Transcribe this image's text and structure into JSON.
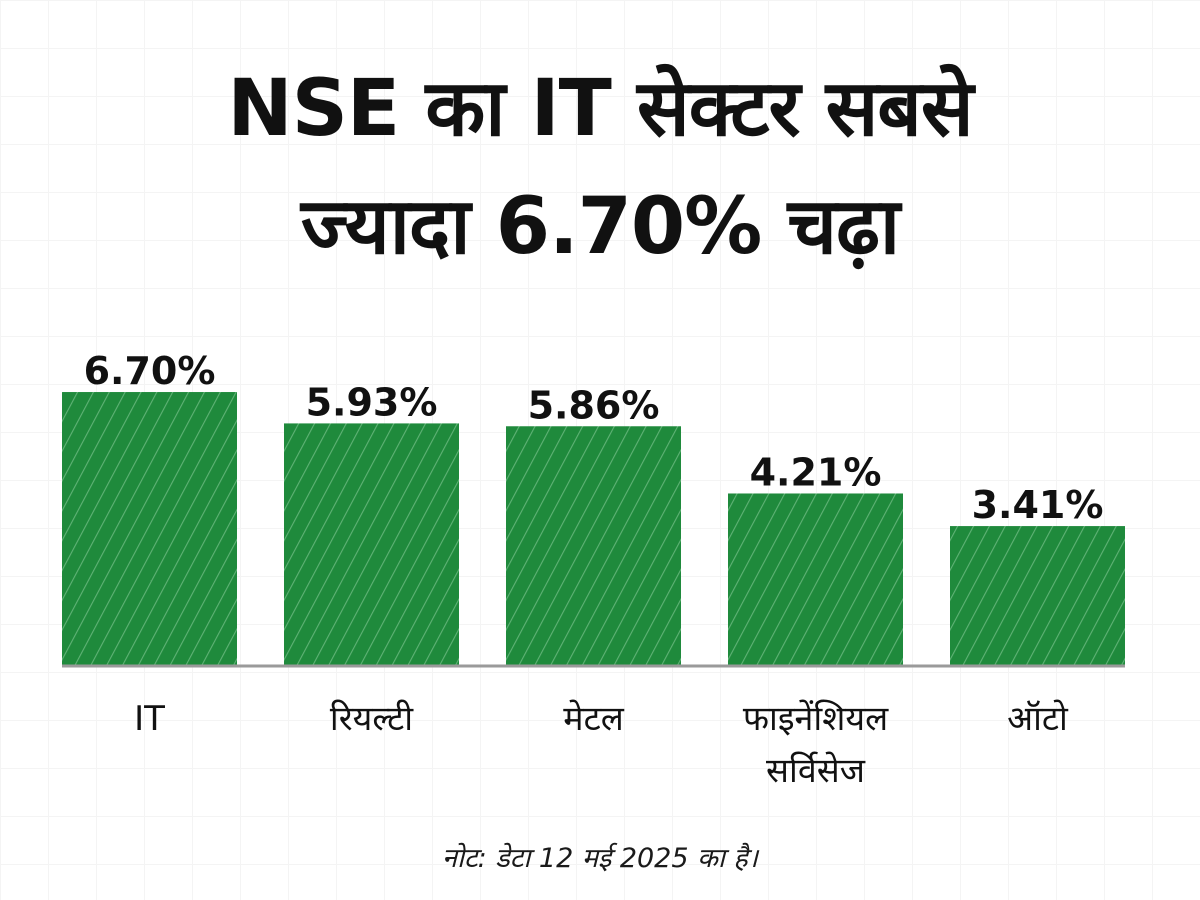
{
  "title_lines": [
    "NSE का IT सेक्टर सबसे",
    "ज्यादा 6.70% चढ़ा"
  ],
  "note": "नोट: डेटा 12 मई 2025 का है।",
  "colors": {
    "bar": "#1f8a3c",
    "bar_stripe": "#5fb275",
    "baseline": "#9a9a9a",
    "text": "#111111"
  },
  "chart_data": {
    "type": "bar",
    "title": "NSE का IT सेक्टर सबसे ज्यादा 6.70% चढ़ा",
    "categories": [
      "IT",
      "रियल्टी",
      "मेटल",
      "फाइनेंशियल सर्विसेज",
      "ऑटो"
    ],
    "category_lines": [
      [
        "IT"
      ],
      [
        "रियल्टी"
      ],
      [
        "मेटल"
      ],
      [
        "फाइनेंशियल",
        "सर्विसेज"
      ],
      [
        "ऑटो"
      ]
    ],
    "values": [
      6.7,
      5.93,
      5.86,
      4.21,
      3.41
    ],
    "value_labels": [
      "6.70%",
      "5.93%",
      "5.86%",
      "4.21%",
      "3.41%"
    ],
    "ylim": [
      0,
      8.1
    ],
    "grid": false,
    "legend": "none",
    "xlabel": "",
    "ylabel": ""
  }
}
